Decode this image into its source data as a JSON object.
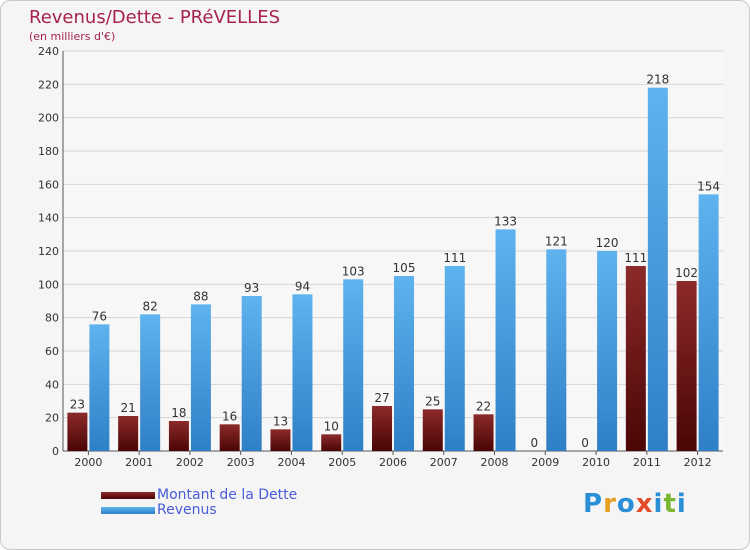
{
  "header": {
    "title": "Revenus/Dette - PRéVELLES",
    "subtitle": "(en milliers d'€)"
  },
  "colors": {
    "title": "#a6234a",
    "dette_top": "#8c2a2a",
    "dette_bottom": "#4a0505",
    "revenus_top": "#5fb3ee",
    "revenus_bottom": "#2f7fc6",
    "legend_text": "#4a5cd6",
    "background": "#f5f5f5"
  },
  "chart_data": {
    "type": "bar",
    "categories": [
      "2000",
      "2001",
      "2002",
      "2003",
      "2004",
      "2005",
      "2006",
      "2007",
      "2008",
      "2009",
      "2010",
      "2011",
      "2012"
    ],
    "series": [
      {
        "name": "Montant de la Dette",
        "values": [
          23,
          21,
          18,
          16,
          13,
          10,
          27,
          25,
          22,
          0,
          0,
          111,
          102
        ]
      },
      {
        "name": "Revenus",
        "values": [
          76,
          82,
          88,
          93,
          94,
          103,
          105,
          111,
          133,
          121,
          120,
          218,
          154
        ]
      }
    ],
    "ylim": [
      0,
      240
    ],
    "yticks": [
      0,
      20,
      40,
      60,
      80,
      100,
      120,
      140,
      160,
      180,
      200,
      220,
      240
    ],
    "grid": true,
    "legend_position": "bottom-left"
  },
  "legend": {
    "items": [
      {
        "label": "Montant de la Dette"
      },
      {
        "label": "Revenus"
      }
    ]
  },
  "logo": {
    "letters": [
      "P",
      "r",
      "o",
      "x",
      "i",
      "t",
      "i"
    ]
  }
}
